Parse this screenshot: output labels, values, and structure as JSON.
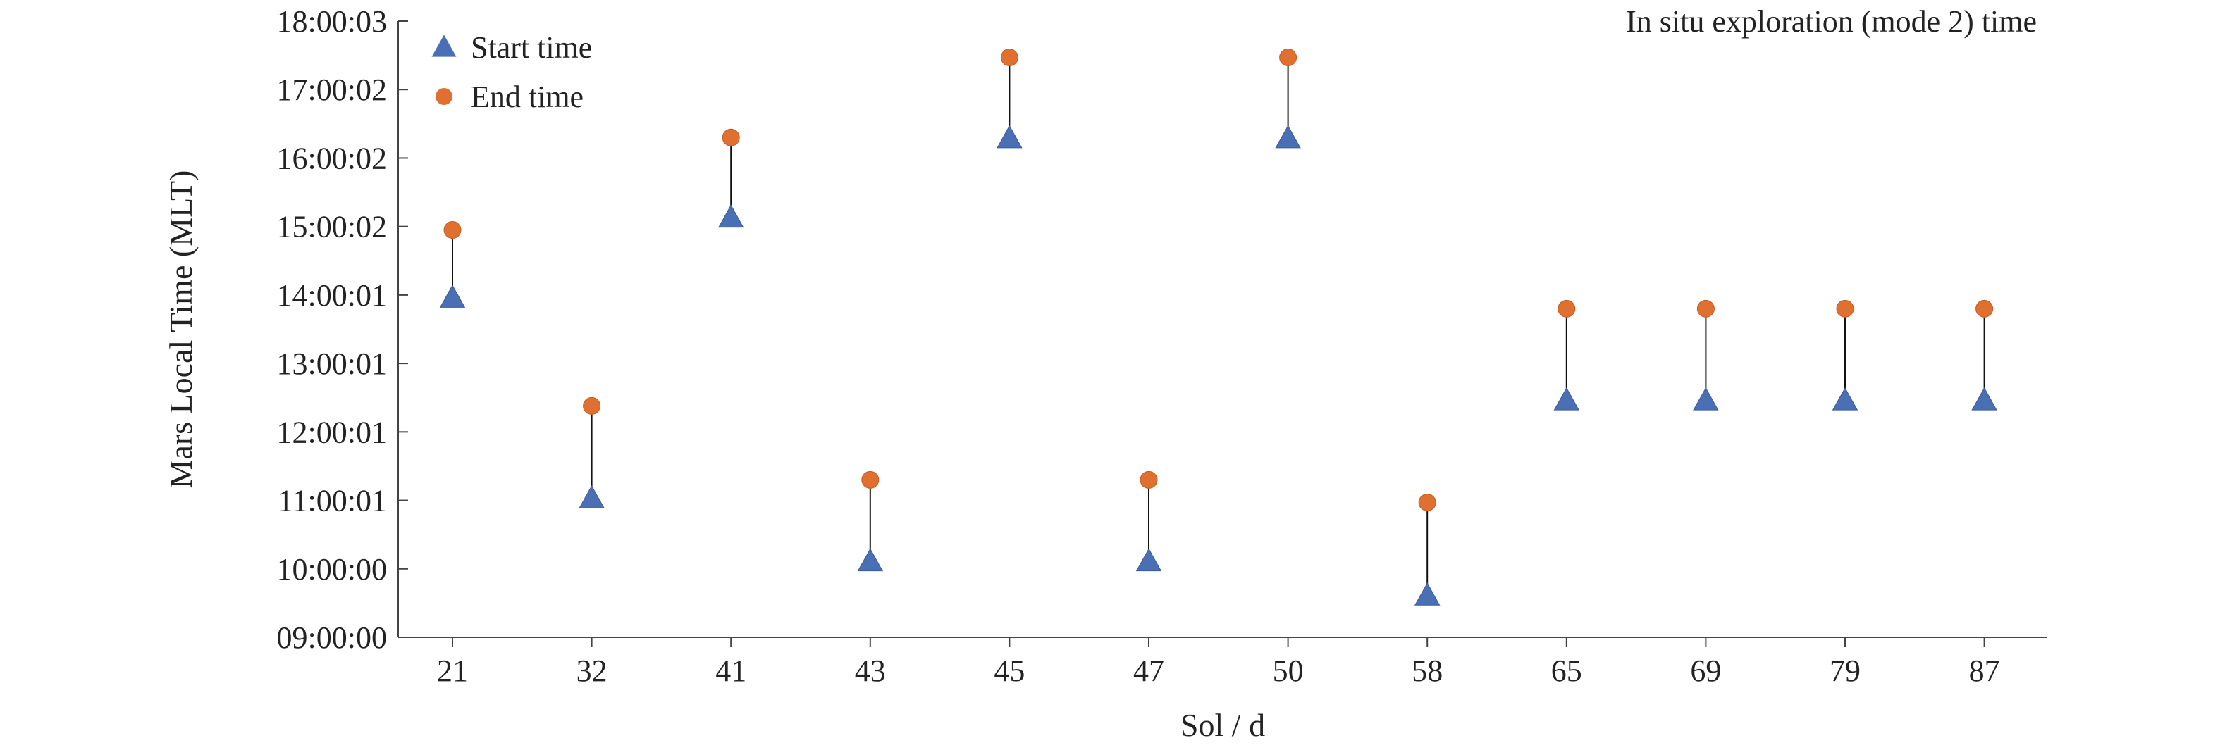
{
  "chart_data": {
    "type": "scatter",
    "title": "",
    "annotation": "In situ exploration (mode 2) time",
    "xlabel": "Sol / d",
    "ylabel": "Mars Local Time (MLT)",
    "categories": [
      "21",
      "32",
      "41",
      "43",
      "45",
      "47",
      "50",
      "58",
      "65",
      "69",
      "79",
      "87"
    ],
    "y_tick_labels": [
      "09:00:00",
      "10:00:00",
      "11:00:01",
      "12:00:01",
      "13:00:01",
      "14:00:01",
      "15:00:02",
      "16:00:02",
      "17:00:02",
      "18:00:03"
    ],
    "ylim": [
      "09:00:00",
      "18:00:03"
    ],
    "y_unit": "hours (MLT)",
    "ylim_hours": [
      9,
      18
    ],
    "grid": false,
    "legend_position": "top-left",
    "series": [
      {
        "name": "Start time",
        "marker": "triangle",
        "color": "#4a6fb5",
        "values": [
          13.95,
          11.02,
          15.12,
          10.1,
          16.28,
          10.1,
          16.28,
          9.6,
          12.45,
          12.45,
          12.45,
          12.45
        ]
      },
      {
        "name": "End time",
        "marker": "circle",
        "color": "#e0702f",
        "values": [
          14.95,
          12.38,
          16.3,
          11.3,
          17.47,
          11.3,
          17.47,
          10.97,
          13.8,
          13.8,
          13.8,
          13.8
        ]
      }
    ]
  }
}
